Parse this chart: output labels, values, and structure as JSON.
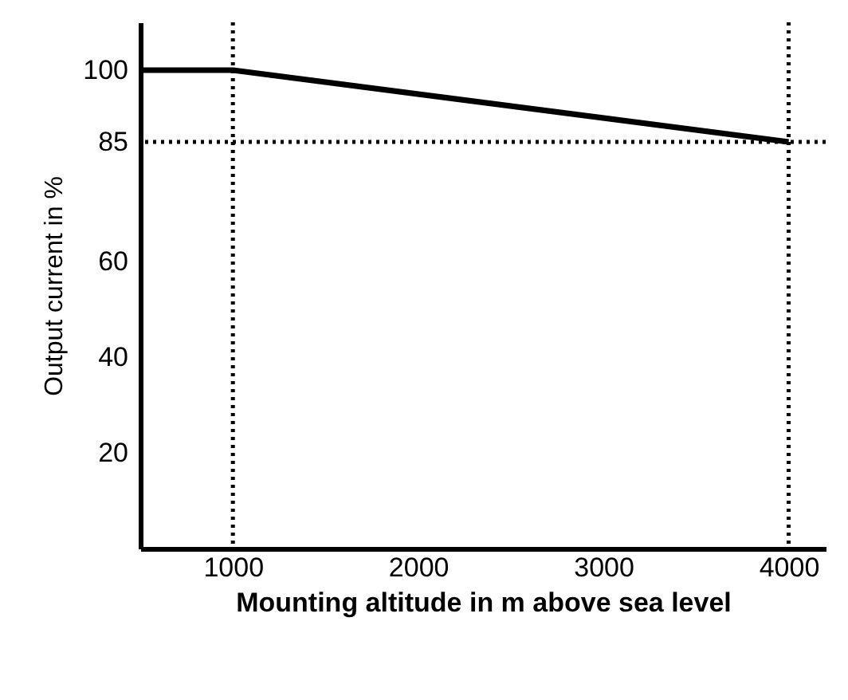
{
  "chart_data": {
    "type": "line",
    "xlabel": "Mounting altitude in m above sea level",
    "ylabel": "Output current in %",
    "x": [
      500,
      1000,
      4000
    ],
    "series": [
      {
        "color": "#000000",
        "values": [
          100,
          100,
          85
        ]
      }
    ],
    "xlim": [
      500,
      4200
    ],
    "ylim": [
      0,
      110
    ],
    "xticks": [
      1000,
      2000,
      3000,
      4000
    ],
    "yticks": [
      20,
      40,
      60,
      85,
      100
    ],
    "ref_lines": [
      {
        "axis": "x",
        "value": 1000,
        "line_style": "dotted"
      },
      {
        "axis": "y",
        "value": 85,
        "line_style": "dotted"
      },
      {
        "axis": "x",
        "value": 4000,
        "line_style": "dotted"
      }
    ],
    "line_style": "solid"
  }
}
